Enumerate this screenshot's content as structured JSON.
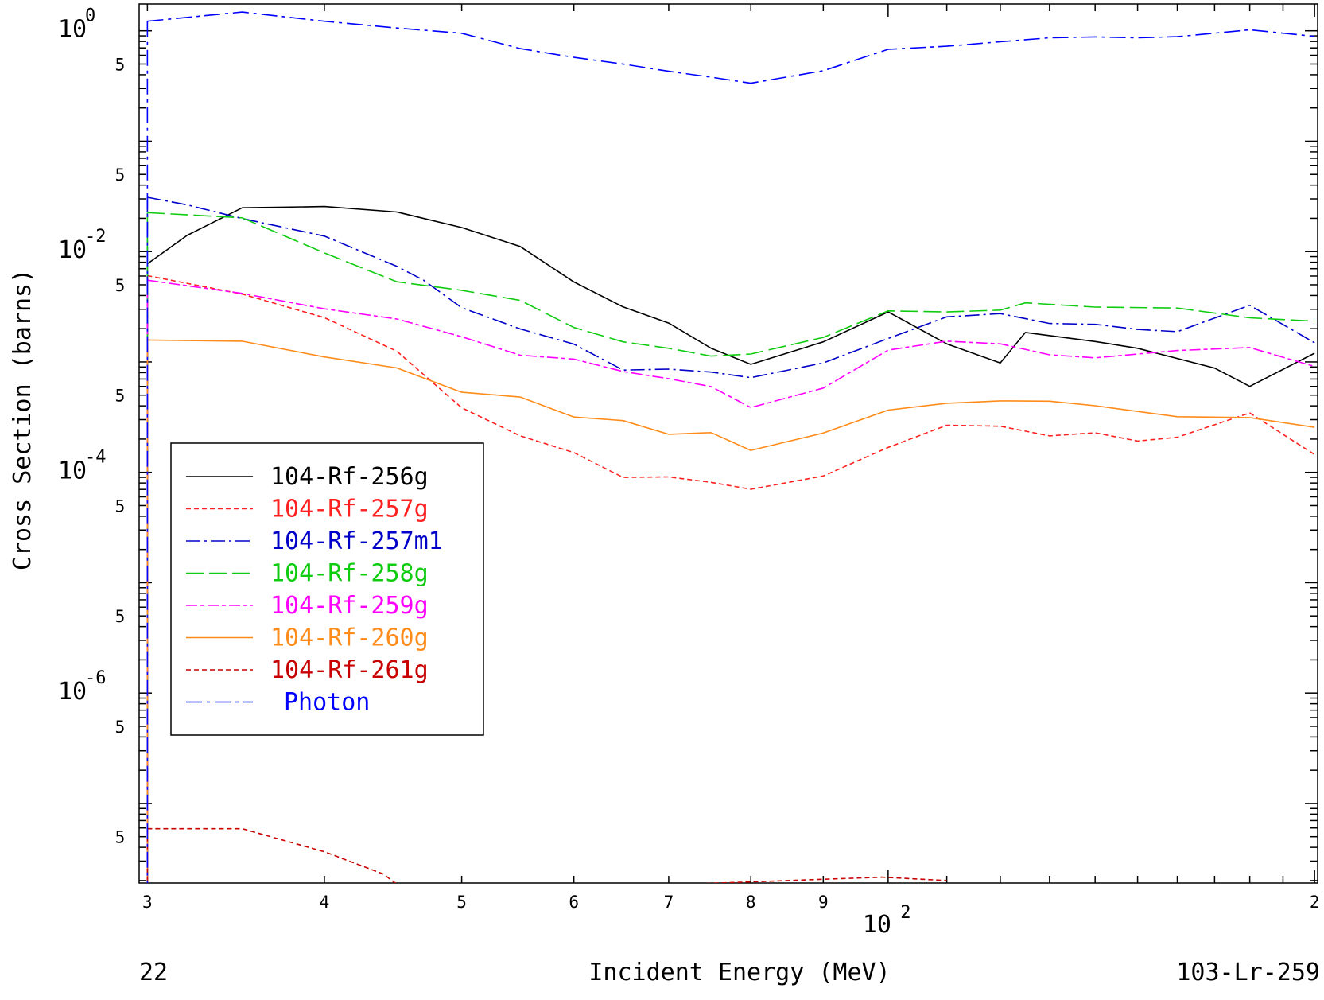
{
  "chart_data": {
    "type": "line",
    "xlabel": "Incident Energy (MeV)",
    "ylabel": "Cross Section (barns)",
    "corner_left": "22",
    "corner_right": "103-Lr-259",
    "xscale": "log",
    "yscale": "log",
    "xlim": [
      29.6,
      201
    ],
    "ylim": [
      1.9e-08,
      1.75
    ],
    "grid": false,
    "legend_position": "middle-left",
    "x_ticks": [
      {
        "value": 30,
        "label": "3"
      },
      {
        "value": 40,
        "label": "4"
      },
      {
        "value": 50,
        "label": "5"
      },
      {
        "value": 60,
        "label": "6"
      },
      {
        "value": 70,
        "label": "7"
      },
      {
        "value": 80,
        "label": "8"
      },
      {
        "value": 90,
        "label": "9"
      },
      {
        "value": 200,
        "label": "2"
      }
    ],
    "x_decade_label": {
      "value": 100,
      "base": "10",
      "exp": "2"
    },
    "y_decade_labels": [
      {
        "value": 1,
        "base": "10",
        "exp": "0"
      },
      {
        "value": 0.01,
        "base": "10",
        "exp": "-2"
      },
      {
        "value": 0.0001,
        "base": "10",
        "exp": "-4"
      },
      {
        "value": 1e-06,
        "base": "10",
        "exp": "-6"
      }
    ],
    "y_five_labels": [
      {
        "value": 0.5,
        "label": "5"
      },
      {
        "value": 0.05,
        "label": "5"
      },
      {
        "value": 0.005,
        "label": "5"
      },
      {
        "value": 0.0005,
        "label": "5"
      },
      {
        "value": 5e-05,
        "label": "5"
      },
      {
        "value": 5e-06,
        "label": "5"
      },
      {
        "value": 5e-07,
        "label": "5"
      },
      {
        "value": 5e-08,
        "label": "5"
      }
    ],
    "series": [
      {
        "name": "104-Rf-256g",
        "color": "#000000",
        "dash": "solid",
        "points": [
          [
            30,
            0.00775
          ],
          [
            32,
            0.014
          ],
          [
            35,
            0.0249
          ],
          [
            40,
            0.0256
          ],
          [
            45,
            0.0228
          ],
          [
            50,
            0.0165
          ],
          [
            55,
            0.0111
          ],
          [
            60,
            0.00531
          ],
          [
            65,
            0.00315
          ],
          [
            70,
            0.00225
          ],
          [
            75,
            0.00133
          ],
          [
            80,
            0.00095
          ],
          [
            90,
            0.00152
          ],
          [
            100,
            0.00284
          ],
          [
            110,
            0.00146
          ],
          [
            120,
            0.00098
          ],
          [
            125,
            0.00185
          ],
          [
            140,
            0.00153
          ],
          [
            150,
            0.00133
          ],
          [
            170,
            0.00088
          ],
          [
            180,
            0.0006
          ],
          [
            200,
            0.0012
          ]
        ]
      },
      {
        "name": "104-Rf-257g",
        "color": "#ff2020",
        "dash": "6,4",
        "points": [
          [
            30,
            0.00605
          ],
          [
            35,
            0.00412
          ],
          [
            40,
            0.00252
          ],
          [
            45,
            0.00125
          ],
          [
            50,
            0.000384
          ],
          [
            55,
            0.000214
          ],
          [
            60,
            0.000151
          ],
          [
            65,
            8.99e-05
          ],
          [
            70,
            9.08e-05
          ],
          [
            75,
            8.11e-05
          ],
          [
            80,
            7.02e-05
          ],
          [
            90,
            9.26e-05
          ],
          [
            100,
            0.000168
          ],
          [
            110,
            0.000267
          ],
          [
            120,
            0.000262
          ],
          [
            130,
            0.000214
          ],
          [
            140,
            0.000228
          ],
          [
            150,
            0.000192
          ],
          [
            160,
            0.000208
          ],
          [
            180,
            0.000345
          ],
          [
            200,
            0.000145
          ]
        ]
      },
      {
        "name": "104-Rf-257m1",
        "color": "#0000c8",
        "dash": "18,5,3,5",
        "points": [
          [
            30,
            0.031
          ],
          [
            32,
            0.0265
          ],
          [
            35,
            0.0199
          ],
          [
            40,
            0.0138
          ],
          [
            45,
            0.00735
          ],
          [
            47,
            0.0055
          ],
          [
            50,
            0.0031
          ],
          [
            55,
            0.00199
          ],
          [
            60,
            0.00145
          ],
          [
            65,
            0.000843
          ],
          [
            70,
            0.00086
          ],
          [
            75,
            0.00081
          ],
          [
            80,
            0.00072
          ],
          [
            90,
            0.00098
          ],
          [
            100,
            0.00163
          ],
          [
            110,
            0.00256
          ],
          [
            120,
            0.00274
          ],
          [
            130,
            0.00223
          ],
          [
            140,
            0.00219
          ],
          [
            150,
            0.00197
          ],
          [
            160,
            0.00188
          ],
          [
            180,
            0.00326
          ],
          [
            200,
            0.00149
          ]
        ]
      },
      {
        "name": "104-Rf-258g",
        "color": "#10cc10",
        "dash": "22,7",
        "points": [
          [
            30,
            0.0225
          ],
          [
            35,
            0.0202
          ],
          [
            40,
            0.00973
          ],
          [
            45,
            0.00532
          ],
          [
            50,
            0.00446
          ],
          [
            55,
            0.00361
          ],
          [
            60,
            0.00205
          ],
          [
            65,
            0.00152
          ],
          [
            70,
            0.00133
          ],
          [
            75,
            0.00113
          ],
          [
            80,
            0.00118
          ],
          [
            90,
            0.00167
          ],
          [
            100,
            0.0029
          ],
          [
            110,
            0.00284
          ],
          [
            120,
            0.00295
          ],
          [
            125,
            0.00343
          ],
          [
            140,
            0.00314
          ],
          [
            160,
            0.00308
          ],
          [
            180,
            0.00251
          ],
          [
            200,
            0.00234
          ]
        ]
      },
      {
        "name": "104-Rf-259g",
        "color": "#ff00ff",
        "dash": "14,4,5,4",
        "points": [
          [
            30,
            0.0055
          ],
          [
            35,
            0.00418
          ],
          [
            40,
            0.00303
          ],
          [
            45,
            0.00245
          ],
          [
            50,
            0.00169
          ],
          [
            55,
            0.00115
          ],
          [
            60,
            0.00106
          ],
          [
            65,
            0.000819
          ],
          [
            70,
            0.000705
          ],
          [
            75,
            0.000597
          ],
          [
            80,
            0.000386
          ],
          [
            90,
            0.00058
          ],
          [
            100,
            0.00128
          ],
          [
            110,
            0.00154
          ],
          [
            120,
            0.00146
          ],
          [
            130,
            0.00116
          ],
          [
            140,
            0.00109
          ],
          [
            150,
            0.00118
          ],
          [
            160,
            0.00127
          ],
          [
            180,
            0.00135
          ],
          [
            200,
            0.00091
          ]
        ]
      },
      {
        "name": "104-Rf-260g",
        "color": "#ff8c1a",
        "dash": "solid",
        "points": [
          [
            30,
            0.00158
          ],
          [
            35,
            0.00154
          ],
          [
            40,
            0.00111
          ],
          [
            45,
            0.000882
          ],
          [
            50,
            0.000531
          ],
          [
            55,
            0.000481
          ],
          [
            60,
            0.000317
          ],
          [
            65,
            0.000294
          ],
          [
            70,
            0.000221
          ],
          [
            75,
            0.000229
          ],
          [
            80,
            0.000158
          ],
          [
            90,
            0.000227
          ],
          [
            100,
            0.000366
          ],
          [
            110,
            0.000422
          ],
          [
            120,
            0.000444
          ],
          [
            130,
            0.000441
          ],
          [
            140,
            0.000401
          ],
          [
            160,
            0.000319
          ],
          [
            180,
            0.000313
          ],
          [
            200,
            0.000256
          ]
        ]
      },
      {
        "name": "104-Rf-261g",
        "color": "#c80000",
        "dash": "6,4",
        "points": [
          [
            30,
            5.9e-08
          ],
          [
            35,
            5.9e-08
          ],
          [
            40,
            3.65e-08
          ],
          [
            44,
            2.3e-08
          ],
          [
            46,
            1.5e-08
          ],
          [
            99,
            2.15e-08
          ],
          [
            110,
            2e-08
          ]
        ]
      },
      {
        "name": "Photon",
        "color": "#0000ff",
        "dash": "20,6,4,6",
        "points": [
          [
            30,
            1.22
          ],
          [
            35,
            1.48
          ],
          [
            40,
            1.22
          ],
          [
            45,
            1.06
          ],
          [
            50,
            0.95
          ],
          [
            55,
            0.69
          ],
          [
            60,
            0.575
          ],
          [
            65,
            0.5
          ],
          [
            70,
            0.43
          ],
          [
            75,
            0.38
          ],
          [
            80,
            0.335
          ],
          [
            90,
            0.435
          ],
          [
            100,
            0.68
          ],
          [
            110,
            0.725
          ],
          [
            120,
            0.795
          ],
          [
            130,
            0.865
          ],
          [
            140,
            0.88
          ],
          [
            150,
            0.865
          ],
          [
            160,
            0.885
          ],
          [
            180,
            1.02
          ],
          [
            200,
            0.89
          ]
        ]
      }
    ]
  }
}
